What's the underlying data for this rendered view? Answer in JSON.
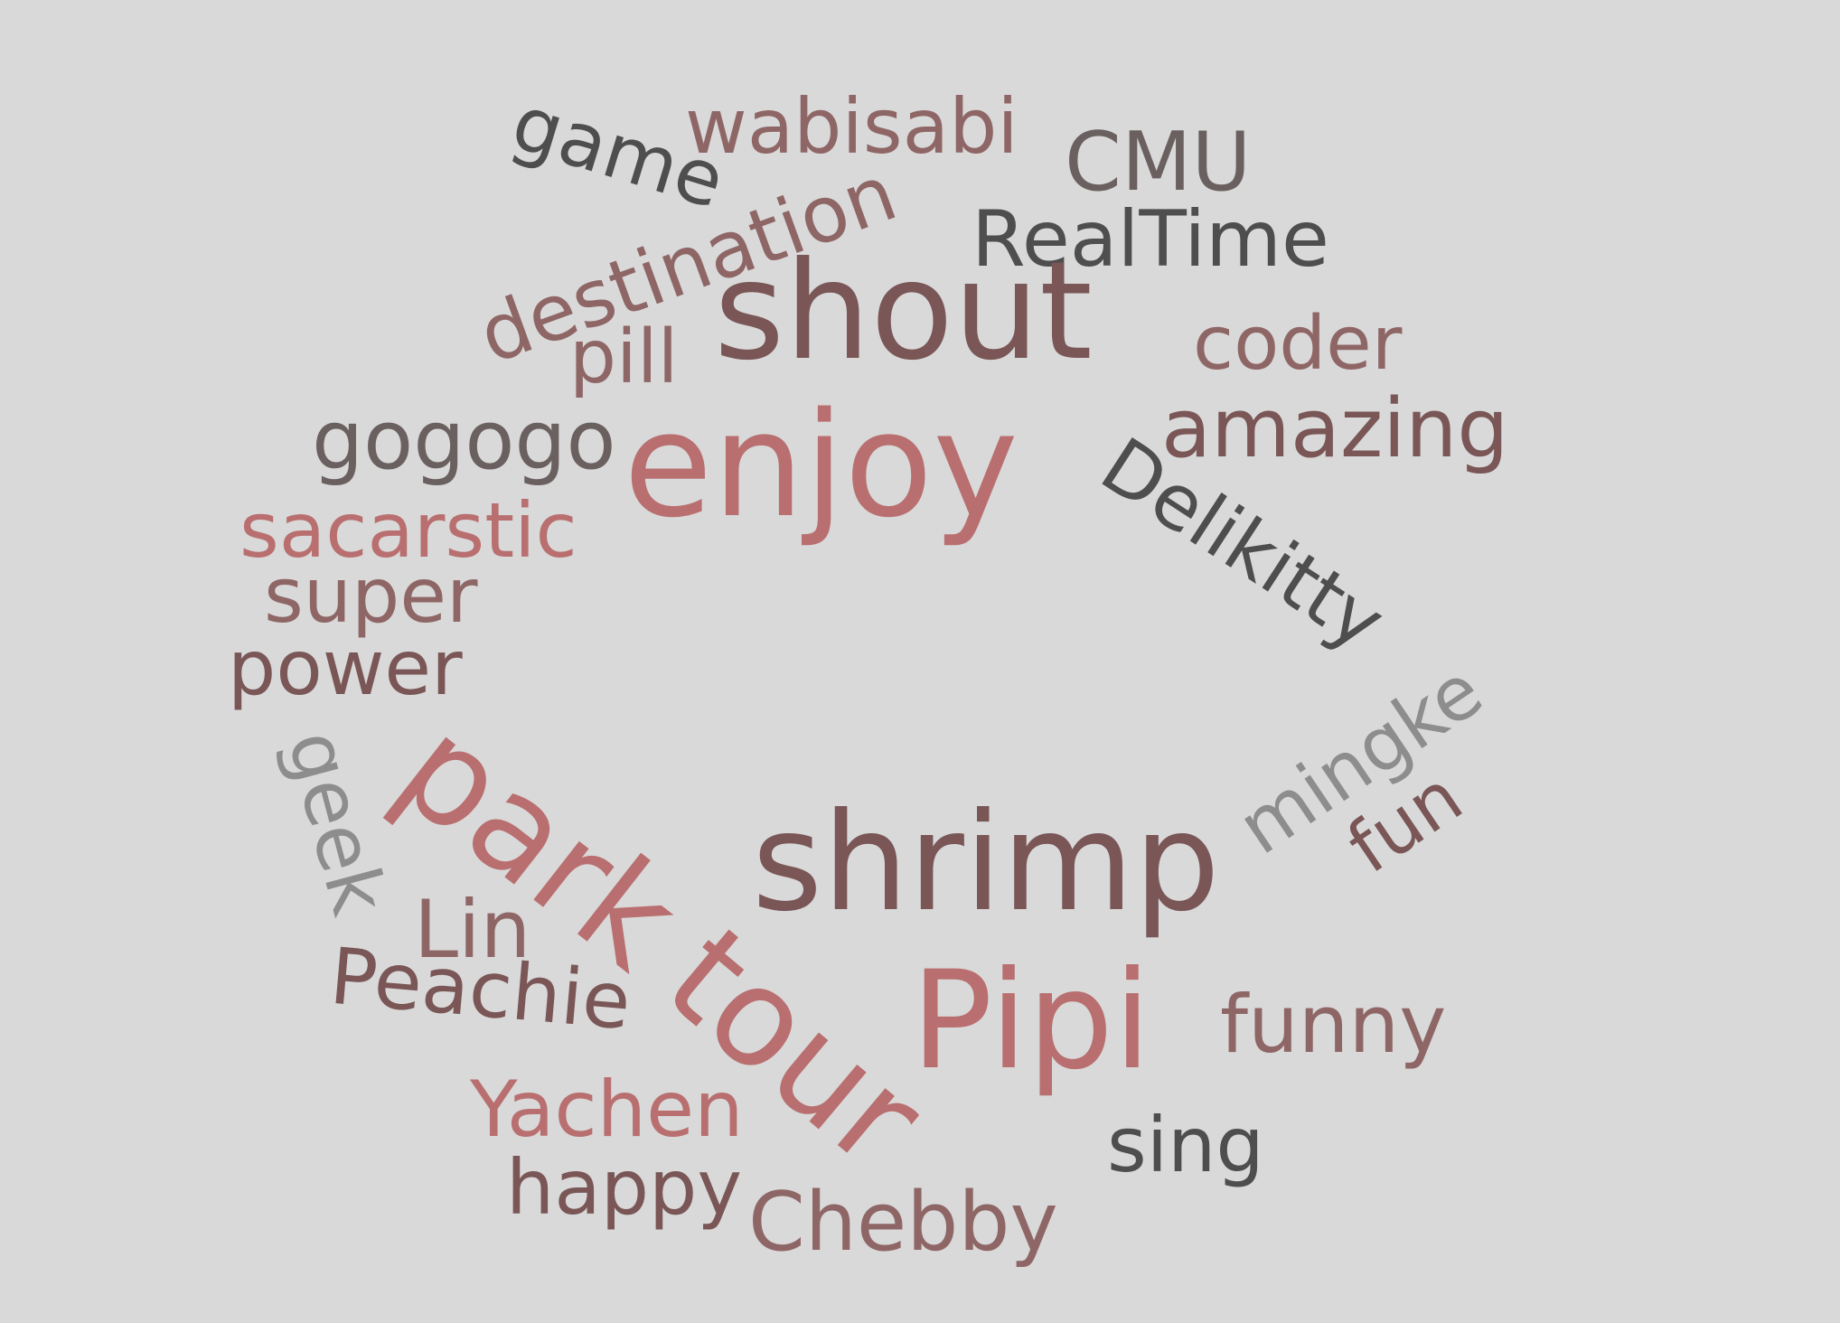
{
  "words": [
    {
      "text": "wabisabi",
      "color": "#8f6666"
    },
    {
      "text": "game",
      "color": "#4e4e4e"
    },
    {
      "text": "CMU",
      "color": "#6b6060"
    },
    {
      "text": "destination",
      "color": "#8f6666"
    },
    {
      "text": "RealTime",
      "color": "#4e4e4e"
    },
    {
      "text": "shout",
      "color": "#7a5656"
    },
    {
      "text": "coder",
      "color": "#8f6666"
    },
    {
      "text": "pill",
      "color": "#8f6666"
    },
    {
      "text": "gogogo",
      "color": "#6b6060"
    },
    {
      "text": "enjoy",
      "color": "#b96f6f"
    },
    {
      "text": "amazing",
      "color": "#7a5656"
    },
    {
      "text": "Delikitty",
      "color": "#4e4e4e"
    },
    {
      "text": "sacarstic",
      "color": "#b96f6f"
    },
    {
      "text": "super",
      "color": "#8f6666"
    },
    {
      "text": "power",
      "color": "#7a5656"
    },
    {
      "text": "mingke",
      "color": "#8d8d8d"
    },
    {
      "text": "geek",
      "color": "#8d8d8d"
    },
    {
      "text": "park",
      "color": "#b96f6f"
    },
    {
      "text": "fun",
      "color": "#7a5656"
    },
    {
      "text": "shrimp",
      "color": "#7a5656"
    },
    {
      "text": "Lin",
      "color": "#8f6666"
    },
    {
      "text": "Peachie",
      "color": "#7a5656"
    },
    {
      "text": "tour",
      "color": "#b96f6f"
    },
    {
      "text": "Pipi",
      "color": "#b96f6f"
    },
    {
      "text": "funny",
      "color": "#8f6666"
    },
    {
      "text": "Yachen",
      "color": "#b96f6f"
    },
    {
      "text": "sing",
      "color": "#4e4e4e"
    },
    {
      "text": "happy",
      "color": "#7a5656"
    },
    {
      "text": "Chebby",
      "color": "#8f6666"
    }
  ]
}
